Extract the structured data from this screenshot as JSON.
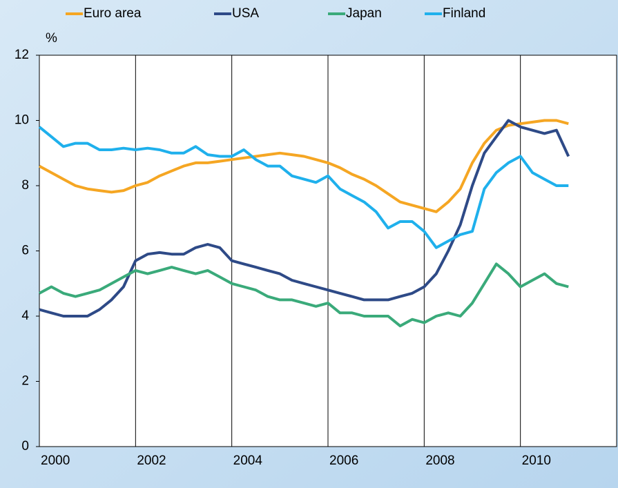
{
  "chart_data": {
    "type": "line",
    "y_label": "%",
    "x": [
      2000,
      2000.25,
      2000.5,
      2000.75,
      2001,
      2001.25,
      2001.5,
      2001.75,
      2002,
      2002.25,
      2002.5,
      2002.75,
      2003,
      2003.25,
      2003.5,
      2003.75,
      2004,
      2004.25,
      2004.5,
      2004.75,
      2005,
      2005.25,
      2005.5,
      2005.75,
      2006,
      2006.25,
      2006.5,
      2006.75,
      2007,
      2007.25,
      2007.5,
      2007.75,
      2008,
      2008.25,
      2008.5,
      2008.75,
      2009,
      2009.25,
      2009.5,
      2009.75,
      2010,
      2010.25,
      2010.5,
      2010.75,
      2011
    ],
    "series": [
      {
        "name": "Euro area",
        "color": "#f5a623",
        "values": [
          8.6,
          8.4,
          8.2,
          8.0,
          7.9,
          7.85,
          7.8,
          7.85,
          8.0,
          8.1,
          8.3,
          8.45,
          8.6,
          8.7,
          8.7,
          8.75,
          8.8,
          8.85,
          8.9,
          8.95,
          9.0,
          8.95,
          8.9,
          8.8,
          8.7,
          8.55,
          8.35,
          8.2,
          8.0,
          7.75,
          7.5,
          7.4,
          7.3,
          7.2,
          7.5,
          7.9,
          8.7,
          9.3,
          9.7,
          9.85,
          9.9,
          9.95,
          10.0,
          10.0,
          9.9
        ]
      },
      {
        "name": "USA",
        "color": "#2e4a87",
        "values": [
          4.2,
          4.1,
          4.0,
          4.0,
          4.0,
          4.2,
          4.5,
          4.9,
          5.7,
          5.9,
          5.95,
          5.9,
          5.9,
          6.1,
          6.2,
          6.1,
          5.7,
          5.6,
          5.5,
          5.4,
          5.3,
          5.1,
          5.0,
          4.9,
          4.8,
          4.7,
          4.6,
          4.5,
          4.5,
          4.5,
          4.6,
          4.7,
          4.9,
          5.3,
          6.0,
          6.8,
          8.0,
          9.0,
          9.5,
          10.0,
          9.8,
          9.7,
          9.6,
          9.7,
          8.9
        ]
      },
      {
        "name": "Japan",
        "color": "#3aaa7a",
        "values": [
          4.7,
          4.9,
          4.7,
          4.6,
          4.7,
          4.8,
          5.0,
          5.2,
          5.4,
          5.3,
          5.4,
          5.5,
          5.4,
          5.3,
          5.4,
          5.2,
          5.0,
          4.9,
          4.8,
          4.6,
          4.5,
          4.5,
          4.4,
          4.3,
          4.4,
          4.1,
          4.1,
          4.0,
          4.0,
          4.0,
          3.7,
          3.9,
          3.8,
          4.0,
          4.1,
          4.0,
          4.4,
          5.0,
          5.6,
          5.3,
          4.9,
          5.1,
          5.3,
          5.0,
          4.9
        ]
      },
      {
        "name": "Finland",
        "color": "#1fb0ec",
        "values": [
          9.8,
          9.5,
          9.2,
          9.3,
          9.3,
          9.1,
          9.1,
          9.15,
          9.1,
          9.15,
          9.1,
          9.0,
          9.0,
          9.2,
          8.95,
          8.9,
          8.9,
          9.1,
          8.8,
          8.6,
          8.6,
          8.3,
          8.2,
          8.1,
          8.3,
          7.9,
          7.7,
          7.5,
          7.2,
          6.7,
          6.9,
          6.9,
          6.6,
          6.1,
          6.3,
          6.5,
          6.6,
          7.9,
          8.4,
          8.7,
          8.9,
          8.4,
          8.2,
          8.0,
          8.0
        ]
      }
    ],
    "xlim": [
      2000,
      2012
    ],
    "xticks": [
      2000,
      2002,
      2004,
      2006,
      2008,
      2010
    ],
    "ylim": [
      0,
      12
    ],
    "yticks": [
      0,
      2,
      4,
      6,
      8,
      10,
      12
    ],
    "grid": "x",
    "legend": "top"
  }
}
